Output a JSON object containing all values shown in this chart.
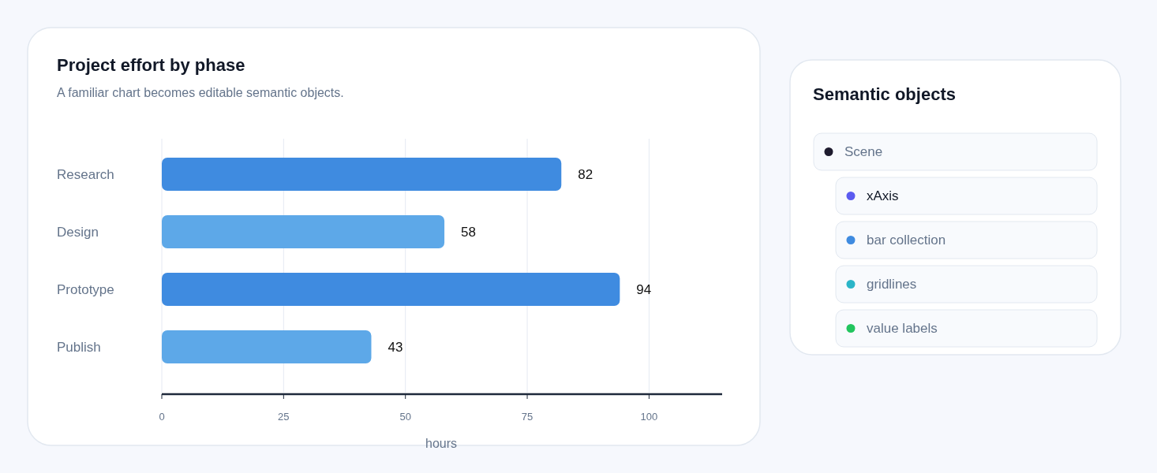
{
  "chart_data": [
    {
      "type": "bar",
      "orientation": "horizontal",
      "title": "Project effort by phase",
      "subtitle": "A familiar chart becomes editable semantic objects.",
      "xlabel": "hours",
      "categories": [
        "Research",
        "Design",
        "Prototype",
        "Publish"
      ],
      "values": [
        82,
        58,
        94,
        43
      ],
      "colors": [
        "#3f8be0",
        "#5da8e8",
        "#3f8be0",
        "#5da8e8"
      ],
      "xlim": [
        0,
        115
      ],
      "xticks": [
        0,
        25,
        50,
        75,
        100
      ],
      "grid": "x",
      "data_labels": true
    },
    {
      "type": "other",
      "title": "Semantic objects",
      "annotations": [
        "Scene",
        "xAxis",
        "bar collection",
        "gridlines",
        "value labels"
      ]
    }
  ]
}
